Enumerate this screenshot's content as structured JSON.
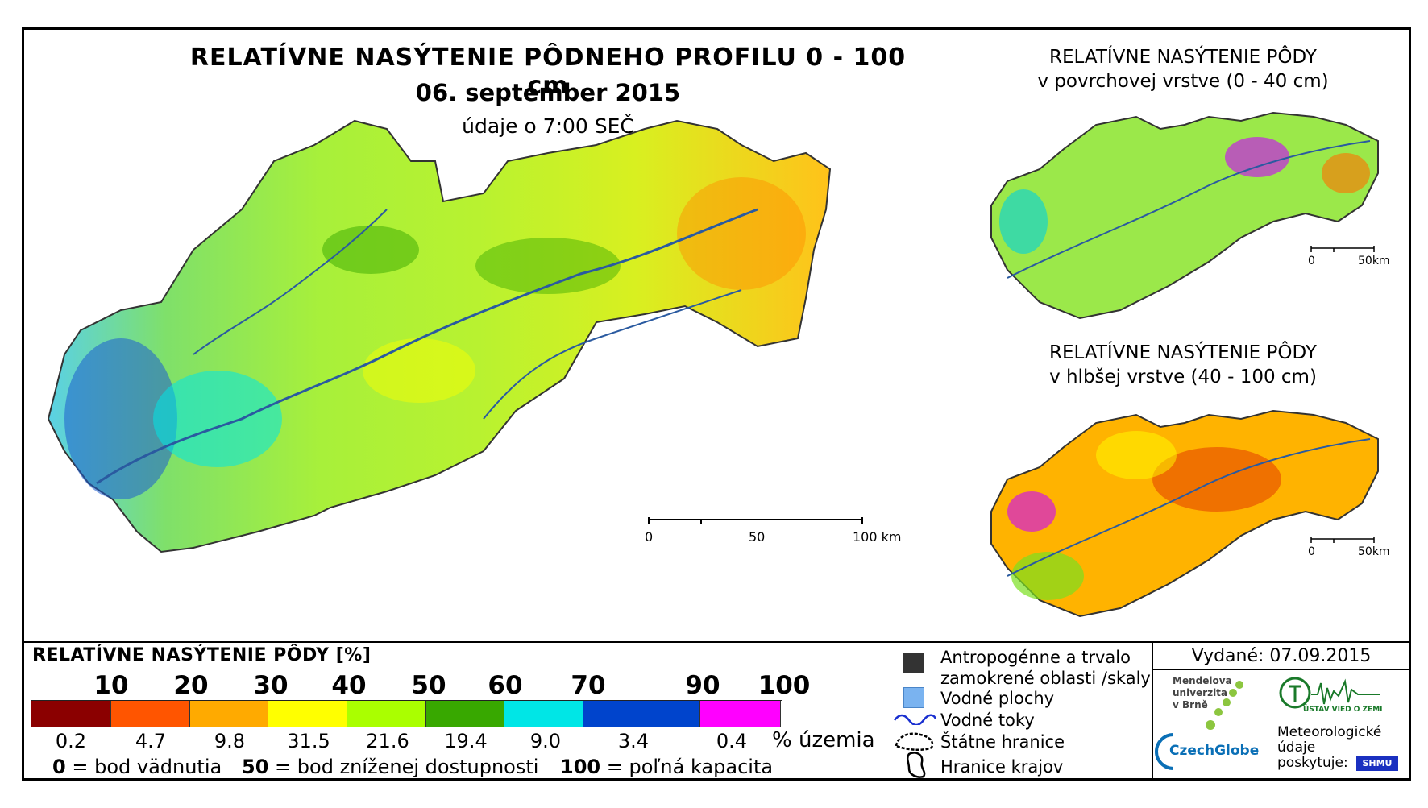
{
  "title": "RELATÍVNE NASÝTENIE PÔDNEHO PROFILU 0 - 100 cm",
  "date": "06. september 2015",
  "time_note": "údaje o 7:00 SEČ",
  "main_scale": {
    "labels": [
      "0",
      "50",
      "100 km"
    ]
  },
  "inset_top": {
    "title_line1": "RELATÍVNE NASÝTENIE PÔDY",
    "title_line2": "v povrchovej vrstve (0 - 40 cm)",
    "scale_labels": [
      "0",
      "50km"
    ]
  },
  "inset_bottom": {
    "title_line1": "RELATÍVNE NASÝTENIE PÔDY",
    "title_line2": "v hlbšej vrstve (40 - 100 cm)",
    "scale_labels": [
      "0",
      "50km"
    ]
  },
  "legend": {
    "title": "RELATÍVNE NASÝTENIE PÔDY [%]",
    "ticks": [
      "10",
      "20",
      "30",
      "40",
      "50",
      "60",
      "70",
      "90",
      "100"
    ],
    "classes": [
      {
        "color": "#8b0000",
        "pct": "0.2"
      },
      {
        "color": "#ff5500",
        "pct": "4.7"
      },
      {
        "color": "#ffaa00",
        "pct": "9.8"
      },
      {
        "color": "#ffff00",
        "pct": "31.5"
      },
      {
        "color": "#aaff00",
        "pct": "21.6"
      },
      {
        "color": "#38a800",
        "pct": "19.4"
      },
      {
        "color": "#00e6e6",
        "pct": "9.0"
      },
      {
        "color": "#0044cc",
        "pct": "3.4"
      },
      {
        "color": "#ff00ff",
        "pct": "0.4"
      }
    ],
    "pct_unit": "% územia",
    "notes": [
      {
        "value": "0",
        "text": "= bod vädnutia"
      },
      {
        "value": "50",
        "text": "= bod zníženej dostupnosti"
      },
      {
        "value": "100",
        "text": "= poľná kapacita"
      }
    ]
  },
  "symbols": {
    "anthropogenic_line1": "Antropogénne a trvalo",
    "anthropogenic_line2": "zamokrené oblasti /skaly",
    "water_areas": "Vodné plochy",
    "rivers": "Vodné toky",
    "state_border": "Štátne hranice",
    "region_border": "Hranice krajov"
  },
  "issued": "Vydané: 07.09.2015",
  "logos": {
    "mendel_line1": "Mendelova",
    "mendel_line2": "univerzita",
    "mendel_line3": "v Brně",
    "czechglobe": "CzechGlobe",
    "uvz": "ÚSTAV VIED O ZEMI",
    "shmu": "SHMU",
    "met_line1": "Meteorologické",
    "met_line2": "údaje",
    "met_line3": "poskytuje:"
  }
}
